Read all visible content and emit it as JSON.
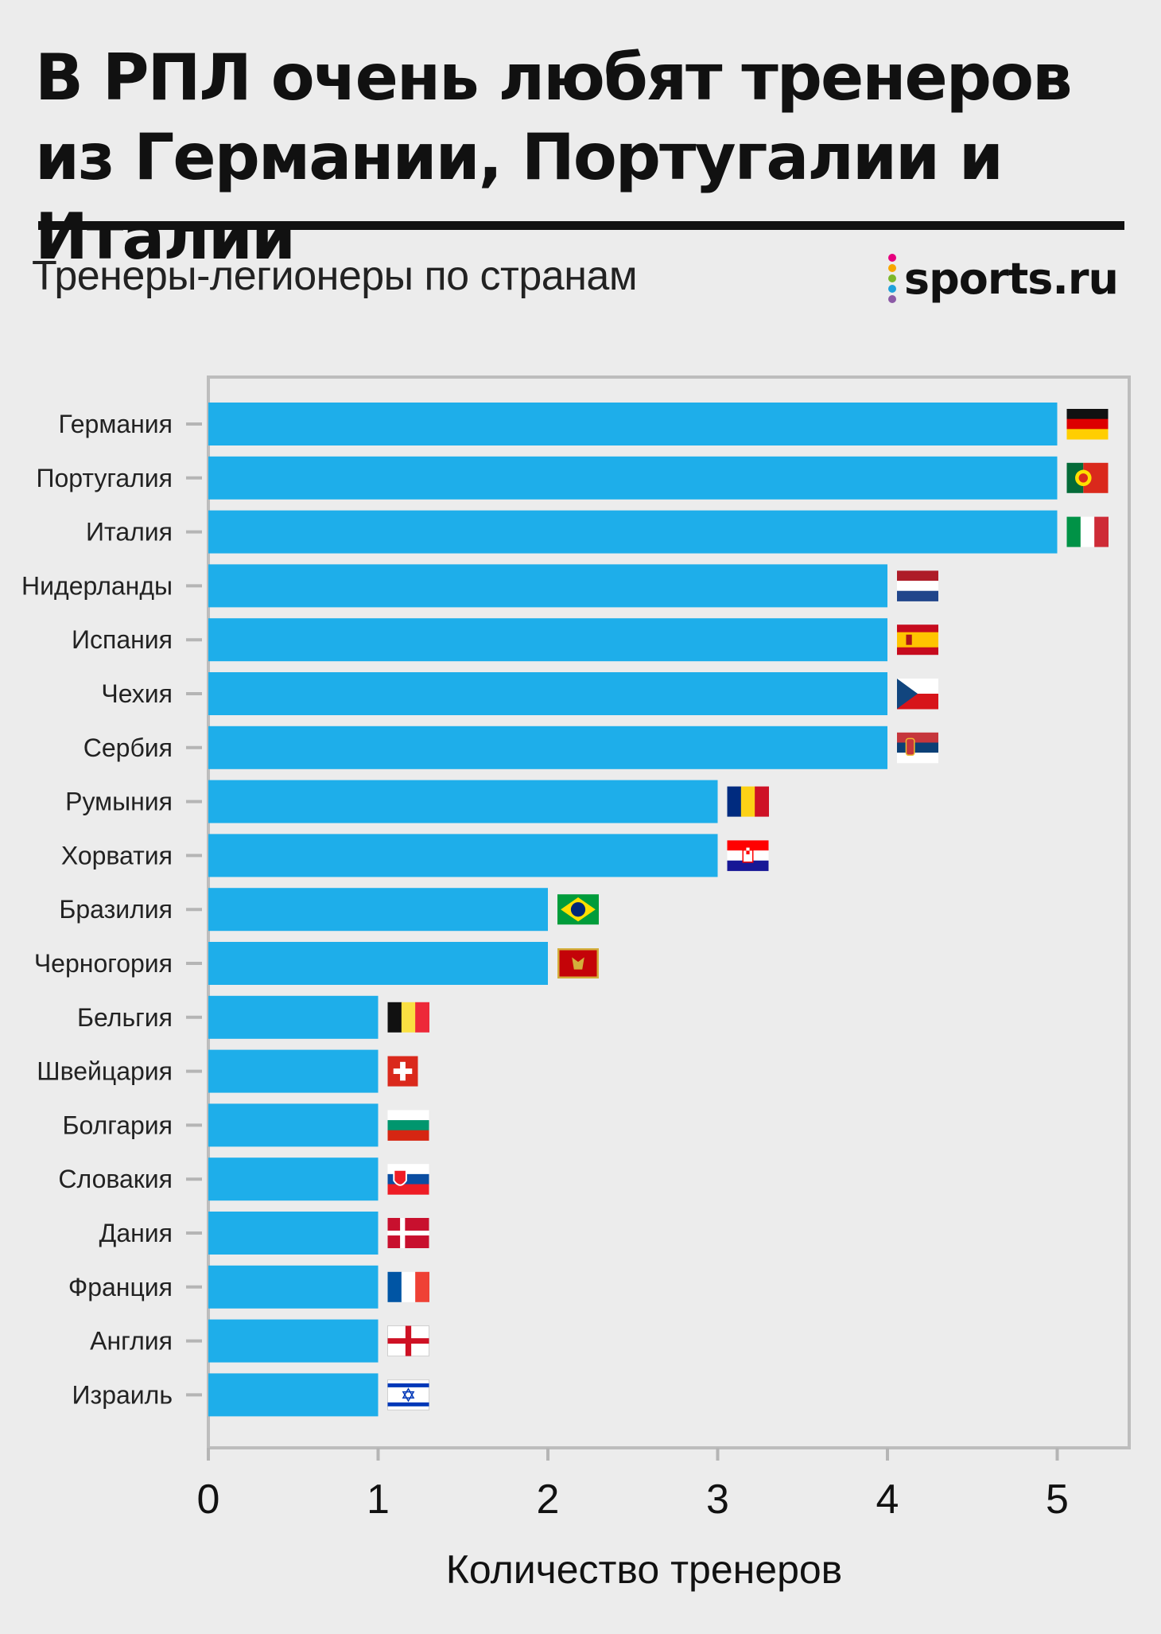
{
  "header": {
    "title": "В РПЛ очень любят тренеров из Германии, Португалии и Италии",
    "subtitle": "Тренеры-легионеры по странам",
    "logo_text": "sports.ru",
    "logo_dot_colors": [
      "#e6007e",
      "#f7a600",
      "#7cb72a",
      "#1fa1db",
      "#8c5aa6"
    ]
  },
  "colors": {
    "bar": "#1eaeea",
    "frame": "#bdbdbd",
    "tick": "#b5b5b5"
  },
  "chart_data": {
    "type": "bar",
    "orientation": "horizontal",
    "categories": [
      "Германия",
      "Португалия",
      "Италия",
      "Нидерланды",
      "Испания",
      "Чехия",
      "Сербия",
      "Румыния",
      "Хорватия",
      "Бразилия",
      "Черногория",
      "Бельгия",
      "Швейцария",
      "Болгария",
      "Словакия",
      "Дания",
      "Франция",
      "Англия",
      "Израиль"
    ],
    "values": [
      5,
      5,
      5,
      4,
      4,
      4,
      4,
      3,
      3,
      2,
      2,
      1,
      1,
      1,
      1,
      1,
      1,
      1,
      1
    ],
    "flag_icons": [
      "germany-flag-icon",
      "portugal-flag-icon",
      "italy-flag-icon",
      "netherlands-flag-icon",
      "spain-flag-icon",
      "czechia-flag-icon",
      "serbia-flag-icon",
      "romania-flag-icon",
      "croatia-flag-icon",
      "brazil-flag-icon",
      "montenegro-flag-icon",
      "belgium-flag-icon",
      "switzerland-flag-icon",
      "bulgaria-flag-icon",
      "slovakia-flag-icon",
      "denmark-flag-icon",
      "france-flag-icon",
      "england-flag-icon",
      "israel-flag-icon"
    ],
    "x_ticks": [
      0,
      1,
      2,
      3,
      4,
      5
    ],
    "xlim": [
      0,
      5.4
    ],
    "xlabel": "Количество тренеров",
    "ylabel": "",
    "grid": false,
    "legend": "none"
  }
}
